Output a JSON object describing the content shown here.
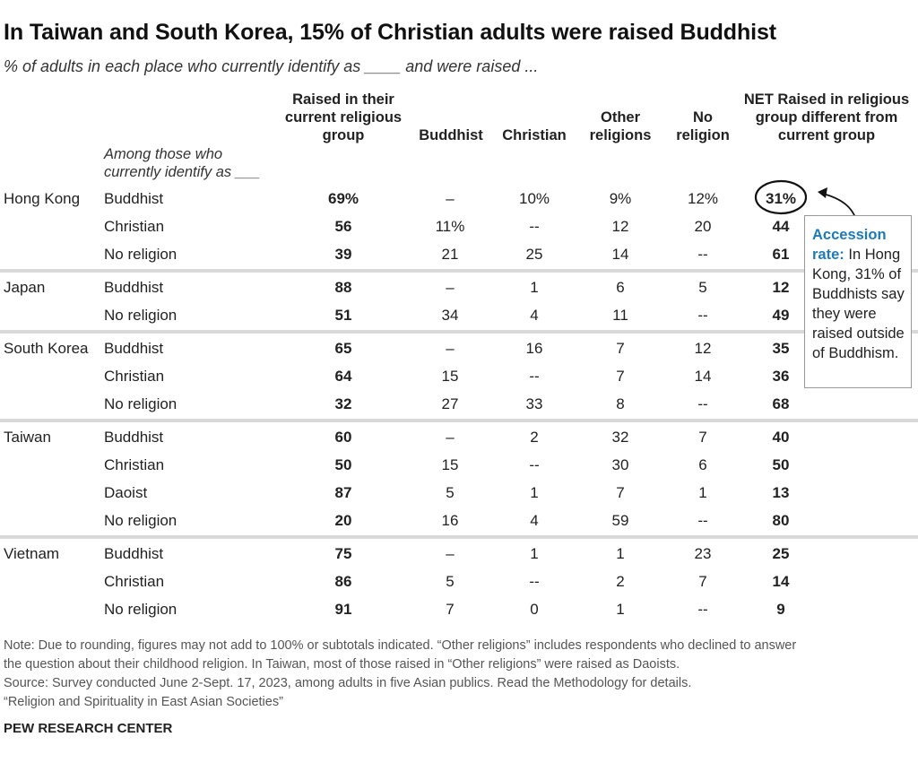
{
  "title": "In Taiwan and South Korea, 15% of Christian adults were raised Buddhist",
  "subtitle": "% of adults in each place who currently identify as ____ and were raised ...",
  "column_headers": {
    "raised_current": [
      "Raised in their",
      "current religious",
      "group"
    ],
    "buddhist": "Buddhist",
    "christian": "Christian",
    "other": [
      "Other",
      "religions"
    ],
    "none": [
      "No",
      "religion"
    ],
    "net": [
      "NET Raised in religious",
      "group different from",
      "current group"
    ]
  },
  "among_label": [
    "Among those who",
    "currently identify as ___"
  ],
  "callout": {
    "label": "Accession rate:",
    "text": "In Hong Kong, 31% of Buddhists say they were raised outside of Buddhism."
  },
  "chart_data": {
    "type": "table",
    "columns": [
      "Raised in their current religious group",
      "Buddhist",
      "Christian",
      "Other religions",
      "No religion",
      "NET Raised in religious group different from current group"
    ],
    "sections": [
      {
        "country": "Hong Kong",
        "rows": [
          {
            "group": "Buddhist",
            "values": [
              "69%",
              "–",
              "10%",
              "9%",
              "12%",
              "31%"
            ]
          },
          {
            "group": "Christian",
            "values": [
              "56",
              "11%",
              "--",
              "12",
              "20",
              "44"
            ]
          },
          {
            "group": "No religion",
            "values": [
              "39",
              "21",
              "25",
              "14",
              "--",
              "61"
            ]
          }
        ]
      },
      {
        "country": "Japan",
        "rows": [
          {
            "group": "Buddhist",
            "values": [
              "88",
              "–",
              "1",
              "6",
              "5",
              "12"
            ]
          },
          {
            "group": "No religion",
            "values": [
              "51",
              "34",
              "4",
              "11",
              "--",
              "49"
            ]
          }
        ]
      },
      {
        "country": "South Korea",
        "rows": [
          {
            "group": "Buddhist",
            "values": [
              "65",
              "–",
              "16",
              "7",
              "12",
              "35"
            ]
          },
          {
            "group": "Christian",
            "values": [
              "64",
              "15",
              "--",
              "7",
              "14",
              "36"
            ]
          },
          {
            "group": "No religion",
            "values": [
              "32",
              "27",
              "33",
              "8",
              "--",
              "68"
            ]
          }
        ]
      },
      {
        "country": "Taiwan",
        "rows": [
          {
            "group": "Buddhist",
            "values": [
              "60",
              "–",
              "2",
              "32",
              "7",
              "40"
            ]
          },
          {
            "group": "Christian",
            "values": [
              "50",
              "15",
              "--",
              "30",
              "6",
              "50"
            ]
          },
          {
            "group": "Daoist",
            "values": [
              "87",
              "5",
              "1",
              "7",
              "1",
              "13"
            ]
          },
          {
            "group": "No religion",
            "values": [
              "20",
              "16",
              "4",
              "59",
              "--",
              "80"
            ]
          }
        ]
      },
      {
        "country": "Vietnam",
        "rows": [
          {
            "group": "Buddhist",
            "values": [
              "75",
              "–",
              "1",
              "1",
              "23",
              "25"
            ]
          },
          {
            "group": "Christian",
            "values": [
              "86",
              "5",
              "--",
              "2",
              "7",
              "14"
            ]
          },
          {
            "group": "No religion",
            "values": [
              "91",
              "7",
              "0",
              "1",
              "--",
              "9"
            ]
          }
        ]
      }
    ]
  },
  "notes": [
    "Note: Due to rounding, figures may not add to 100% or subtotals indicated. “Other religions” includes respondents who declined to answer",
    "the question about their childhood religion. In Taiwan, most of those raised in “Other religions” were raised as Daoists.",
    "Source: Survey conducted June 2-Sept. 17, 2023, among adults in five Asian publics. Read the Methodology for details.",
    "“Religion and Spirituality in East Asian Societies”"
  ],
  "brand": "PEW RESEARCH CENTER",
  "colors": {
    "accent": "#1f7ab8",
    "separator": "#d9d9d9"
  }
}
